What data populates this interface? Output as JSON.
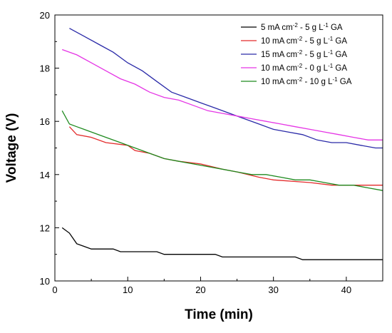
{
  "chart_data": {
    "type": "line",
    "title": "",
    "xlabel": "Time (min)",
    "ylabel": "Voltage (V)",
    "xlim": [
      0,
      45
    ],
    "ylim": [
      10,
      20
    ],
    "xticks": [
      0,
      10,
      20,
      30,
      40
    ],
    "yticks": [
      10,
      12,
      14,
      16,
      18,
      20
    ],
    "grid": false,
    "legend_position": "top-right",
    "series": [
      {
        "legend": {
          "a": "5  mA cm",
          "b": "-2",
          "c": " -  5 g L",
          "d": "-1",
          "e": " GA"
        },
        "color": "#000000",
        "x": [
          1,
          2,
          3,
          4,
          5,
          6,
          7,
          8,
          9,
          10,
          12,
          14,
          15,
          20,
          22,
          23,
          30,
          33,
          34,
          45
        ],
        "y": [
          12.0,
          11.8,
          11.4,
          11.3,
          11.2,
          11.2,
          11.2,
          11.2,
          11.1,
          11.1,
          11.1,
          11.1,
          11.0,
          11.0,
          11.0,
          10.9,
          10.9,
          10.9,
          10.8,
          10.8
        ]
      },
      {
        "legend": {
          "a": "10 mA cm",
          "b": "-2",
          "c": " -  5 g L",
          "d": "-1",
          "e": " GA"
        },
        "color": "#e32b2b",
        "x": [
          2,
          3,
          5,
          7,
          10,
          11,
          13,
          15,
          17,
          20,
          23,
          25,
          28,
          30,
          35,
          38,
          41,
          45
        ],
        "y": [
          15.8,
          15.5,
          15.4,
          15.2,
          15.1,
          14.9,
          14.8,
          14.6,
          14.5,
          14.4,
          14.2,
          14.1,
          13.9,
          13.8,
          13.7,
          13.6,
          13.6,
          13.6
        ]
      },
      {
        "legend": {
          "a": "15 mA cm",
          "b": "-2",
          "c": " -  5 g L",
          "d": "-1",
          "e": " GA"
        },
        "color": "#2a2aa8",
        "x": [
          2,
          4,
          6,
          8,
          10,
          12,
          14,
          16,
          18,
          20,
          22,
          24,
          26,
          28,
          30,
          32,
          34,
          36,
          38,
          40,
          42,
          44,
          45
        ],
        "y": [
          19.5,
          19.2,
          18.9,
          18.6,
          18.2,
          17.9,
          17.5,
          17.1,
          16.9,
          16.7,
          16.5,
          16.3,
          16.1,
          15.9,
          15.7,
          15.6,
          15.5,
          15.3,
          15.2,
          15.2,
          15.1,
          15.0,
          15.0
        ]
      },
      {
        "legend": {
          "a": "10 mA cm",
          "b": "-2",
          "c": " -  0 g L",
          "d": "-1",
          "e": " GA"
        },
        "color": "#e535e5",
        "x": [
          1,
          3,
          5,
          7,
          9,
          11,
          13,
          15,
          17,
          19,
          21,
          23,
          25,
          27,
          29,
          31,
          33,
          35,
          37,
          39,
          41,
          43,
          45
        ],
        "y": [
          18.7,
          18.5,
          18.2,
          17.9,
          17.6,
          17.4,
          17.1,
          16.9,
          16.8,
          16.6,
          16.4,
          16.3,
          16.2,
          16.1,
          16.0,
          15.9,
          15.8,
          15.7,
          15.6,
          15.5,
          15.4,
          15.3,
          15.3
        ]
      },
      {
        "legend": {
          "a": "10 mA cm",
          "b": "-2",
          "c": " - 10 g L",
          "d": "-1",
          "e": " GA"
        },
        "color": "#1f8a1f",
        "x": [
          1,
          2,
          3,
          4,
          5,
          7,
          9,
          11,
          13,
          15,
          17,
          19,
          21,
          23,
          25,
          27,
          29,
          31,
          33,
          35,
          37,
          39,
          41,
          43,
          45
        ],
        "y": [
          16.4,
          15.9,
          15.8,
          15.7,
          15.6,
          15.4,
          15.2,
          15.0,
          14.8,
          14.6,
          14.5,
          14.4,
          14.3,
          14.2,
          14.1,
          14.0,
          14.0,
          13.9,
          13.8,
          13.8,
          13.7,
          13.6,
          13.6,
          13.5,
          13.4
        ]
      }
    ]
  }
}
